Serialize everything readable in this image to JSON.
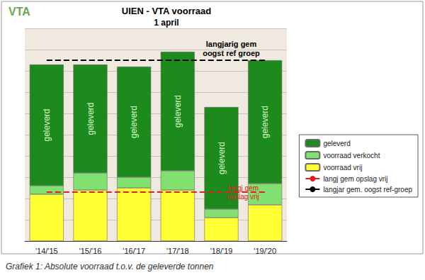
{
  "chart_data": {
    "type": "bar",
    "title": "UIEN - VTA voorraad",
    "subtitle": "1 april",
    "logo": "VTA",
    "caption": "Grafiek 1: Absolute voorraad t.o.v. de geleverde tonnen",
    "categories": [
      "'14/'15",
      "'15/'16",
      "'16/'17",
      "'17/'18",
      "'18/'19",
      "'19/'20"
    ],
    "stacked": true,
    "series": [
      {
        "name": "voorraad vrij",
        "color": "#ffff33",
        "values": [
          22,
          24,
          25,
          24,
          11,
          17
        ]
      },
      {
        "name": "voorraad verkocht",
        "color": "#80e070",
        "values": [
          4,
          8,
          5,
          9,
          4,
          10
        ]
      },
      {
        "name": "geleverd",
        "color": "#1c8a1c",
        "values": [
          57,
          51,
          52,
          56,
          48,
          58
        ]
      },
      {
        "name": "langj gem opslag vrij",
        "type": "line",
        "line_style": "dashed",
        "color": "#e02020",
        "values": [
          23,
          23,
          23,
          23,
          23,
          23
        ]
      },
      {
        "name": "langjar gem. oogst ref-groep",
        "type": "line",
        "line_style": "dashed",
        "color": "#000000",
        "values": [
          85,
          85,
          85,
          85,
          85,
          85
        ]
      }
    ],
    "annotations": [
      {
        "text": "langjarig gem\noogst ref groep",
        "series": "langjar gem. oogst ref-groep"
      },
      {
        "text": "langj gem\nopslag vrij",
        "series": "langj gem opslag vrij"
      }
    ],
    "ylim": [
      0,
      100
    ],
    "yticks": [
      0,
      10,
      20,
      30,
      40,
      50,
      60,
      70,
      80,
      90,
      100
    ],
    "grid": true,
    "legend": "right",
    "tick_labels": "x"
  }
}
